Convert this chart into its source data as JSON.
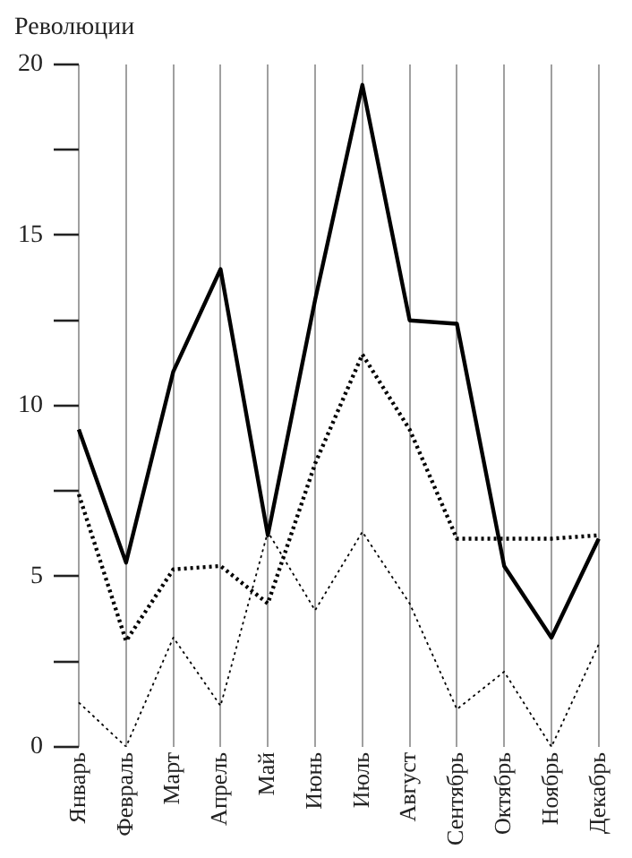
{
  "chart_data": {
    "type": "line",
    "ylabel": "Революции",
    "categories": [
      "Январь",
      "Февраль",
      "Март",
      "Апрель",
      "Май",
      "Июнь",
      "Июль",
      "Август",
      "Сентябрь",
      "Октябрь",
      "Ноябрь",
      "Декабрь"
    ],
    "series": [
      {
        "color": "#000000",
        "line_style": "solid",
        "values": [
          9.3,
          5.4,
          11.0,
          14.0,
          6.2,
          13.1,
          19.4,
          12.5,
          12.4,
          5.3,
          3.2,
          6.1
        ]
      },
      {
        "color": "#000000",
        "line_style": "dotted",
        "values": [
          7.4,
          3.1,
          5.2,
          5.3,
          4.2,
          8.3,
          11.5,
          9.3,
          6.1,
          6.1,
          6.1,
          6.2
        ]
      },
      {
        "color": "#000000",
        "line_style": "dotted",
        "values": [
          1.3,
          0,
          3.2,
          1.2,
          6.3,
          4.0,
          6.3,
          4.2,
          1.1,
          2.2,
          0,
          3.0
        ]
      }
    ],
    "ylim": [
      0,
      20
    ],
    "yticks": [
      0,
      {
        "value": 2.5,
        "label": null
      },
      5,
      {
        "value": 7.5,
        "label": null
      },
      10,
      {
        "value": 12.5,
        "label": null
      },
      15,
      {
        "value": 17.5,
        "label": null
      },
      20
    ],
    "grid": "x",
    "legend": false,
    "marker": "none"
  }
}
